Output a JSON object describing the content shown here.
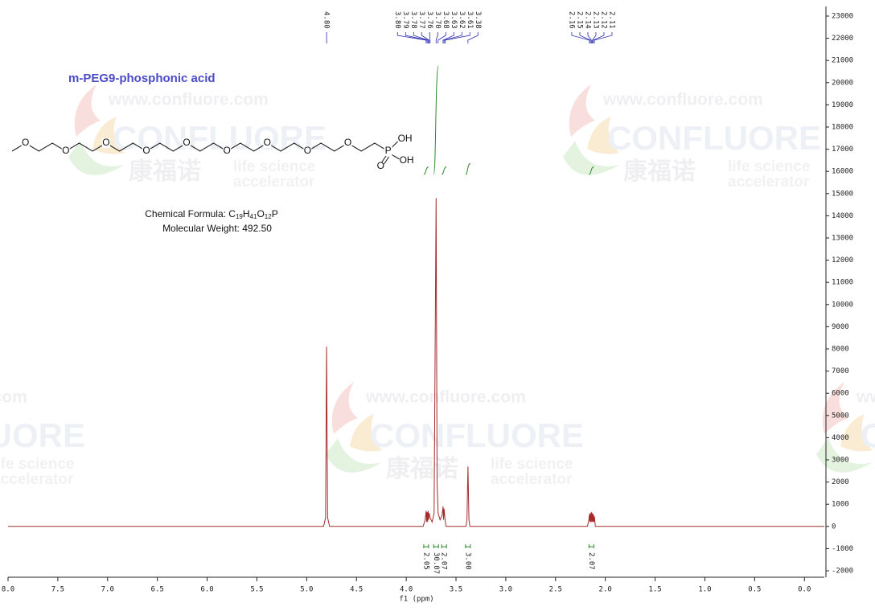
{
  "chart_data": {
    "type": "nmr",
    "xlabel": "f1 (ppm)",
    "xlim": [
      8.0,
      -0.2
    ],
    "xticks": [
      {
        "value": 8.0,
        "label": "8.0"
      },
      {
        "value": 7.5,
        "label": "7.5"
      },
      {
        "value": 7.0,
        "label": "7.0"
      },
      {
        "value": 6.5,
        "label": "6.5"
      },
      {
        "value": 6.0,
        "label": "6.0"
      },
      {
        "value": 5.5,
        "label": "5.5"
      },
      {
        "value": 5.0,
        "label": "5.0"
      },
      {
        "value": 4.5,
        "label": "4.5"
      },
      {
        "value": 4.0,
        "label": "4.0"
      },
      {
        "value": 3.5,
        "label": "3.5"
      },
      {
        "value": 3.0,
        "label": "3.0"
      },
      {
        "value": 2.5,
        "label": "2.5"
      },
      {
        "value": 2.0,
        "label": "2.0"
      },
      {
        "value": 1.5,
        "label": "1.5"
      },
      {
        "value": 1.0,
        "label": "1.0"
      },
      {
        "value": 0.5,
        "label": "0.5"
      },
      {
        "value": 0.0,
        "label": "0.0"
      }
    ],
    "ylim": [
      -2000,
      23000
    ],
    "yticks": [
      23000,
      22000,
      21000,
      20000,
      19000,
      18000,
      17000,
      16000,
      15000,
      14000,
      13000,
      12000,
      11000,
      10000,
      9000,
      8000,
      7000,
      6000,
      5000,
      4000,
      3000,
      2000,
      1000,
      0,
      -1000,
      -2000
    ],
    "series": [
      {
        "color": "#a52a2a",
        "x": [
          8.0,
          4.83,
          4.81,
          4.8,
          4.79,
          4.77,
          3.83,
          3.81,
          3.8,
          3.795,
          3.79,
          3.785,
          3.78,
          3.775,
          3.77,
          3.76,
          3.74,
          3.72,
          3.7,
          3.69,
          3.68,
          3.66,
          3.64,
          3.63,
          3.625,
          3.62,
          3.61,
          3.6,
          3.4,
          3.39,
          3.38,
          3.37,
          3.36,
          2.18,
          2.165,
          2.16,
          2.155,
          2.15,
          2.145,
          2.14,
          2.135,
          2.13,
          2.125,
          2.12,
          2.115,
          2.11,
          2.1,
          -0.2
        ],
        "values": [
          0,
          0,
          400,
          8100,
          400,
          0,
          0,
          300,
          700,
          200,
          650,
          200,
          700,
          300,
          600,
          400,
          200,
          600,
          14800,
          2000,
          600,
          300,
          500,
          900,
          300,
          800,
          300,
          0,
          0,
          300,
          2700,
          300,
          0,
          0,
          300,
          550,
          200,
          600,
          200,
          650,
          200,
          600,
          200,
          550,
          200,
          450,
          0,
          0
        ]
      }
    ],
    "peak_labels": [
      {
        "value": 4.8,
        "label": "4.80"
      },
      {
        "value": 3.8,
        "label": "3.80"
      },
      {
        "value": 3.79,
        "label": "3.79"
      },
      {
        "value": 3.78,
        "label": "3.78"
      },
      {
        "value": 3.77,
        "label": "3.77"
      },
      {
        "value": 3.76,
        "label": "3.76"
      },
      {
        "value": 3.7,
        "label": "3.70"
      },
      {
        "value": 3.68,
        "label": "3.68"
      },
      {
        "value": 3.63,
        "label": "3.63"
      },
      {
        "value": 3.62,
        "label": "3.62"
      },
      {
        "value": 3.61,
        "label": "3.61"
      },
      {
        "value": 3.38,
        "label": "3.38"
      },
      {
        "value": 2.16,
        "label": "2.16"
      },
      {
        "value": 2.15,
        "label": "2.15"
      },
      {
        "value": 2.14,
        "label": "2.14"
      },
      {
        "value": 2.13,
        "label": "2.13"
      },
      {
        "value": 2.12,
        "label": "2.12"
      },
      {
        "value": 2.11,
        "label": "2.11"
      }
    ],
    "integrals": {
      "color": "#2e8b2e",
      "x": [
        3.8,
        3.7,
        3.62,
        3.38,
        2.14
      ],
      "values": [
        2.05,
        30.07,
        2.07,
        3.0,
        2.07
      ],
      "value_labels": [
        "2.05",
        "30.07",
        "2.07",
        "3.00",
        "2.07"
      ]
    }
  },
  "compound": {
    "name": "m-PEG9-phosphonic acid",
    "formula_label": "Chemical Formula: ",
    "formula": [
      "C",
      "19",
      "H",
      "41",
      "O",
      "12",
      "P"
    ],
    "weight": "Molecular Weight: 492.50",
    "atoms": {
      "oxygen": "O",
      "phosphorus": "P",
      "hydroxyl": "OH"
    }
  },
  "watermark": {
    "url": "www.confluore.com",
    "brand": "CONFLUORE",
    "chinese": "康福诺",
    "line1": "life science",
    "line2": "accelerator"
  }
}
